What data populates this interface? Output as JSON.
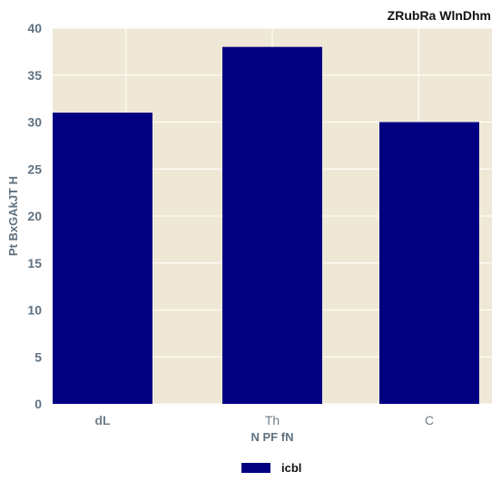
{
  "chart_data": {
    "type": "bar",
    "title": "ZRubRa  WlnDhm",
    "xlabel": "N PF  fN",
    "ylabel": "Pt BxGAkJT H",
    "categories": [
      "dL",
      "Th",
      "C"
    ],
    "series": [
      {
        "name": "icbl",
        "values": [
          31,
          38,
          30
        ],
        "color": "#000080"
      }
    ],
    "ylim": [
      0,
      40
    ],
    "yticks": [
      0,
      5,
      10,
      15,
      20,
      25,
      30,
      35,
      40
    ],
    "grid": true,
    "legend": "bottom-center",
    "colors": {
      "plot_background": "#efe8d6",
      "grid": "#ffffff",
      "bar": "#000080"
    }
  }
}
